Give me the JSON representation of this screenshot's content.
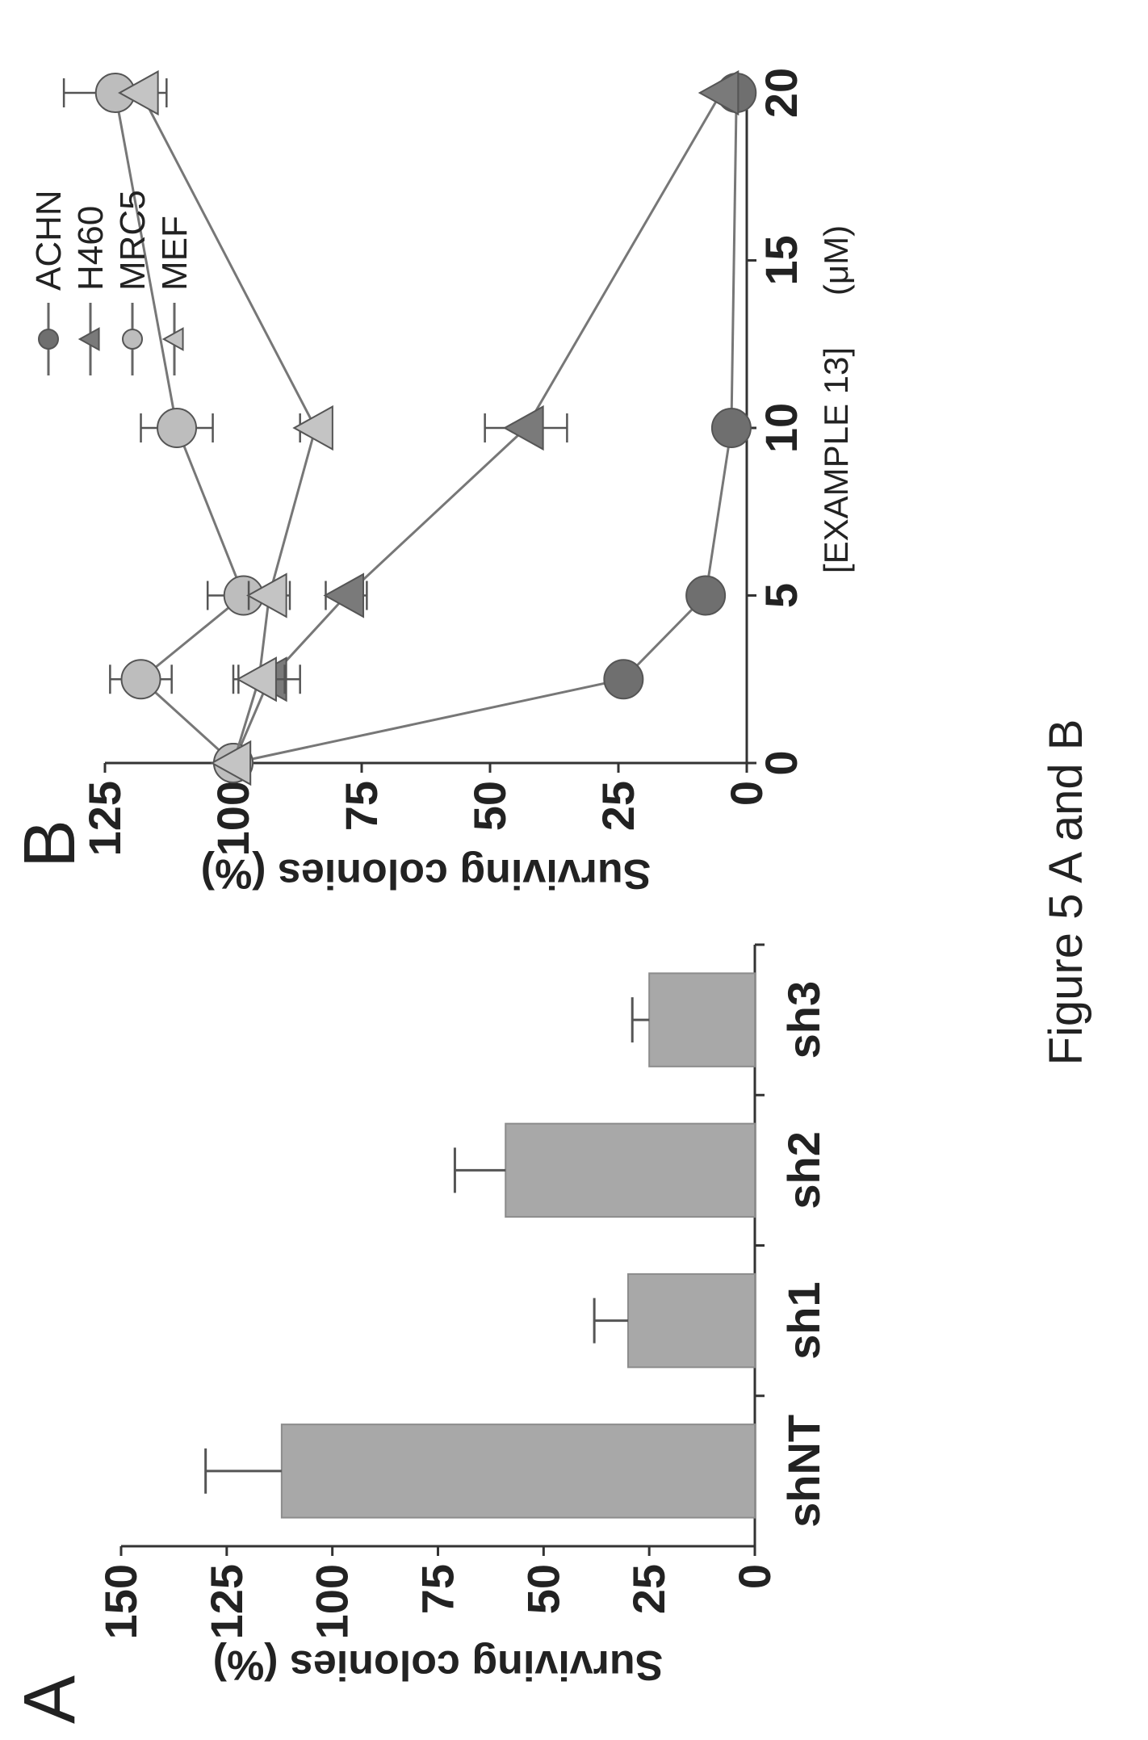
{
  "figure": {
    "caption": "Figure 5 A and B",
    "panel_a_label": "A",
    "panel_b_label": "B"
  },
  "chart_data": [
    {
      "type": "bar",
      "panel": "A",
      "categories": [
        "shNT",
        "sh1",
        "sh2",
        "sh3"
      ],
      "values": [
        112,
        30,
        59,
        25
      ],
      "error": [
        18,
        8,
        12,
        4
      ],
      "ylabel": "Surviving colonies (%)",
      "xlabel": "",
      "ylim": [
        0,
        150
      ],
      "yticks": [
        "0",
        "25",
        "50",
        "75",
        "100",
        "125",
        "150"
      ],
      "bar_color": "#a8a8a8"
    },
    {
      "type": "scatter",
      "panel": "B",
      "ylabel": "Surviving colonies (%)",
      "xlabel_line1": "[EXAMPLE 13]",
      "xlabel_line2": "(μM)",
      "xlim": [
        0,
        20
      ],
      "ylim": [
        0,
        125
      ],
      "xticks": [
        "0",
        "5",
        "10",
        "15",
        "20"
      ],
      "yticks": [
        "0",
        "25",
        "50",
        "75",
        "100",
        "125"
      ],
      "legend_position": "top-right",
      "series": [
        {
          "name": "ACHN",
          "marker": "circle",
          "color": "#6f6f6f",
          "x": [
            0,
            2.5,
            5,
            10,
            20
          ],
          "y": [
            100,
            24,
            8,
            3,
            2
          ],
          "err": [
            0,
            0,
            0,
            0,
            0
          ]
        },
        {
          "name": "H460",
          "marker": "triangle",
          "color": "#7a7a7a",
          "x": [
            0,
            2.5,
            5,
            10,
            20
          ],
          "y": [
            100,
            93,
            78,
            43,
            5
          ],
          "err": [
            0,
            6,
            4,
            8,
            0
          ]
        },
        {
          "name": "MRC5",
          "marker": "circle",
          "color": "#bdbdbd",
          "x": [
            0,
            2.5,
            5,
            10,
            20
          ],
          "y": [
            100,
            118,
            98,
            111,
            123
          ],
          "err": [
            0,
            6,
            7,
            7,
            10
          ]
        },
        {
          "name": "MEF",
          "marker": "triangle",
          "color": "#c4c4c4",
          "x": [
            0,
            2.5,
            5,
            10,
            20
          ],
          "y": [
            100,
            95,
            93,
            84,
            118
          ],
          "err": [
            0,
            5,
            4,
            3,
            0
          ]
        }
      ]
    }
  ]
}
